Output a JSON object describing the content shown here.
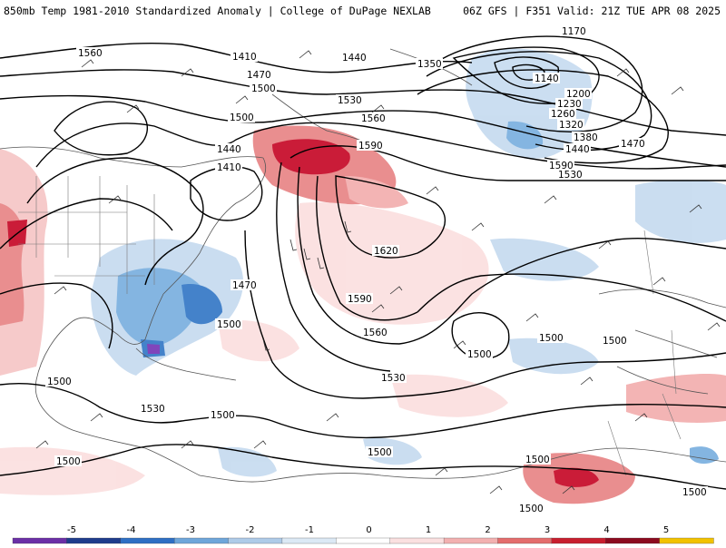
{
  "header": {
    "title_left": "850mb Temp 1981-2010 Standardized Anomaly | College of DuPage NEXLAB",
    "title_right": "06Z GFS | F351 Valid: 21Z TUE APR 08 2025"
  },
  "map": {
    "height_contour_labels": [
      {
        "text": "1560"
      },
      {
        "text": "1410"
      },
      {
        "text": "1470"
      },
      {
        "text": "1500"
      },
      {
        "text": "1440"
      },
      {
        "text": "1350"
      },
      {
        "text": "1170"
      },
      {
        "text": "1140"
      },
      {
        "text": "1200"
      },
      {
        "text": "1230"
      },
      {
        "text": "1260"
      },
      {
        "text": "1320"
      },
      {
        "text": "1380"
      },
      {
        "text": "1440"
      },
      {
        "text": "1470"
      },
      {
        "text": "1530"
      },
      {
        "text": "1560"
      },
      {
        "text": "1590"
      },
      {
        "text": "1500"
      },
      {
        "text": "1440"
      },
      {
        "text": "1410"
      },
      {
        "text": "1590"
      },
      {
        "text": "1530"
      },
      {
        "text": "1620"
      },
      {
        "text": "1590"
      },
      {
        "text": "1470"
      },
      {
        "text": "1500"
      },
      {
        "text": "1560"
      },
      {
        "text": "1500"
      },
      {
        "text": "1500"
      },
      {
        "text": "1530"
      },
      {
        "text": "1500"
      },
      {
        "text": "1530"
      },
      {
        "text": "1500"
      },
      {
        "text": "1500"
      },
      {
        "text": "1500"
      },
      {
        "text": "1500"
      },
      {
        "text": "1500"
      },
      {
        "text": "1500"
      },
      {
        "text": "1500"
      }
    ],
    "anomaly_colors": {
      "strong_warm": "#c8102e",
      "warm": "#e8888a",
      "weak_warm": "#f6c8c8",
      "weak_cool": "#c8dcf0",
      "cool": "#7eb2e0",
      "strong_cool": "#3a7cc8",
      "extreme_cool": "#7a3cb8"
    }
  },
  "colorbar": {
    "ticks": [
      "-5",
      "-4",
      "-3",
      "-2",
      "-1",
      "0",
      "1",
      "2",
      "3",
      "4",
      "5"
    ],
    "colors": [
      "#6b2fa6",
      "#1e3c8c",
      "#2e6fc4",
      "#6ea6da",
      "#aecbe8",
      "#dce9f5",
      "#ffffff",
      "#fbe0e0",
      "#f3b0b0",
      "#e46c6c",
      "#c81e2e",
      "#8c0a1e",
      "#f2c200"
    ]
  }
}
